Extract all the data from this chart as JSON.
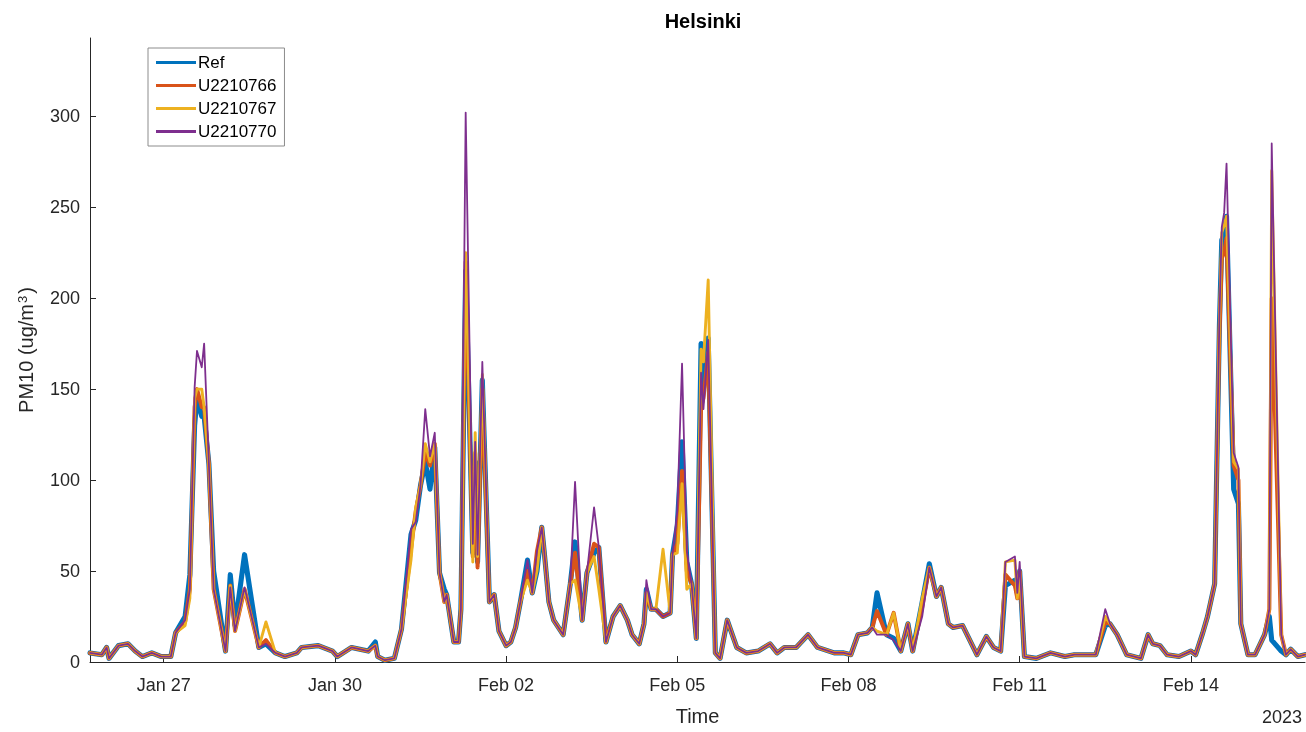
{
  "chart_data": {
    "type": "line",
    "title": "Helsinki",
    "xlabel": "Time",
    "ylabel": "PM10 (ug/m$^{3}$)",
    "annotations": [
      "2023"
    ],
    "x": [
      "2023-01-25T17:00",
      "2023-01-25T22:00",
      "2023-01-26T00:00",
      "2023-01-26T01:00",
      "2023-01-26T05:00",
      "2023-01-26T09:00",
      "2023-01-26T12:00",
      "2023-01-26T15:00",
      "2023-01-26T19:00",
      "2023-01-26T23:00",
      "2023-01-27T03:00",
      "2023-01-27T05:00",
      "2023-01-27T09:00",
      "2023-01-27T11:00",
      "2023-01-27T13:00",
      "2023-01-27T14:00",
      "2023-01-27T16:00",
      "2023-01-27T17:00",
      "2023-01-27T19:00",
      "2023-01-27T21:00",
      "2023-01-28T02:00",
      "2023-01-28T04:00",
      "2023-01-28T06:00",
      "2023-01-28T10:00",
      "2023-01-28T16:00",
      "2023-01-28T19:00",
      "2023-01-28T23:00",
      "2023-01-29T03:00",
      "2023-01-29T08:00",
      "2023-01-29T10:00",
      "2023-01-29T17:00",
      "2023-01-29T23:00",
      "2023-01-30T01:00",
      "2023-01-30T07:00",
      "2023-01-30T14:00",
      "2023-01-30T17:00",
      "2023-01-30T18:00",
      "2023-01-30T21:00",
      "2023-01-31T01:00",
      "2023-01-31T04:00",
      "2023-01-31T08:00",
      "2023-01-31T10:00",
      "2023-01-31T12:00",
      "2023-01-31T14:00",
      "2023-01-31T16:00",
      "2023-01-31T18:00",
      "2023-01-31T20:00",
      "2023-01-31T22:00",
      "2023-01-31T23:00",
      "2023-02-01T02:00",
      "2023-02-01T04:00",
      "2023-02-01T05:00",
      "2023-02-01T07:00",
      "2023-02-01T10:00",
      "2023-02-01T11:00",
      "2023-02-01T12:00",
      "2023-02-01T14:00",
      "2023-02-01T17:00",
      "2023-02-01T19:00",
      "2023-02-01T21:00",
      "2023-02-02T00:00",
      "2023-02-02T02:00",
      "2023-02-02T04:00",
      "2023-02-02T06:00",
      "2023-02-02T09:00",
      "2023-02-02T11:00",
      "2023-02-02T13:00",
      "2023-02-02T15:00",
      "2023-02-02T16:00",
      "2023-02-02T18:00",
      "2023-02-02T20:00",
      "2023-02-03T00:00",
      "2023-02-03T03:00",
      "2023-02-03T05:00",
      "2023-02-03T08:00",
      "2023-02-03T10:00",
      "2023-02-03T13:00",
      "2023-02-03T15:00",
      "2023-02-03T18:00",
      "2023-02-03T21:00",
      "2023-02-04T00:00",
      "2023-02-04T03:00",
      "2023-02-04T05:00",
      "2023-02-04T08:00",
      "2023-02-04T10:00",
      "2023-02-04T11:00",
      "2023-02-04T13:00",
      "2023-02-04T15:00",
      "2023-02-04T18:00",
      "2023-02-04T21:00",
      "2023-02-04T22:00",
      "2023-02-05T00:00",
      "2023-02-05T02:00",
      "2023-02-05T04:00",
      "2023-02-05T06:00",
      "2023-02-05T08:00",
      "2023-02-05T10:00",
      "2023-02-05T11:00",
      "2023-02-05T13:00",
      "2023-02-05T16:00",
      "2023-02-05T18:00",
      "2023-02-05T21:00",
      "2023-02-06T01:00",
      "2023-02-06T05:00",
      "2023-02-06T10:00",
      "2023-02-06T15:00",
      "2023-02-06T18:00",
      "2023-02-06T21:00",
      "2023-02-07T02:00",
      "2023-02-07T07:00",
      "2023-02-07T11:00",
      "2023-02-07T18:00",
      "2023-02-07T22:00",
      "2023-02-08T01:00",
      "2023-02-08T04:00",
      "2023-02-08T08:00",
      "2023-02-08T10:00",
      "2023-02-08T12:00",
      "2023-02-08T16:00",
      "2023-02-08T19:00",
      "2023-02-08T22:00",
      "2023-02-09T01:00",
      "2023-02-09T03:00",
      "2023-02-09T07:00",
      "2023-02-09T10:00",
      "2023-02-09T13:00",
      "2023-02-09T15:00",
      "2023-02-09T18:00",
      "2023-02-09T20:00",
      "2023-02-10T00:00",
      "2023-02-10T06:00",
      "2023-02-10T10:00",
      "2023-02-10T13:00",
      "2023-02-10T16:00",
      "2023-02-10T18:00",
      "2023-02-10T22:00",
      "2023-02-10T23:00",
      "2023-02-11T00:00",
      "2023-02-11T02:00",
      "2023-02-11T07:00",
      "2023-02-11T13:00",
      "2023-02-11T19:00",
      "2023-02-11T23:00",
      "2023-02-12T08:00",
      "2023-02-12T12:00",
      "2023-02-12T14:00",
      "2023-02-12T17:00",
      "2023-02-12T21:00",
      "2023-02-13T03:00",
      "2023-02-13T06:00",
      "2023-02-13T08:00",
      "2023-02-13T11:00",
      "2023-02-13T14:00",
      "2023-02-13T19:00",
      "2023-02-14T00:00",
      "2023-02-14T02:00",
      "2023-02-14T05:00",
      "2023-02-14T07:00",
      "2023-02-14T10:00",
      "2023-02-14T12:00",
      "2023-02-14T13:00",
      "2023-02-14T14:00",
      "2023-02-14T15:00",
      "2023-02-14T18:00",
      "2023-02-14T20:00",
      "2023-02-14T21:00",
      "2023-02-15T00:00",
      "2023-02-15T03:00",
      "2023-02-15T07:00",
      "2023-02-15T09:00",
      "2023-02-15T10:00",
      "2023-02-15T14:00",
      "2023-02-15T16:00",
      "2023-02-15T18:00",
      "2023-02-15T21:00",
      "2023-02-16T00:00"
    ],
    "series": [
      {
        "name": "Ref",
        "color": "#0072bd",
        "values": [
          5,
          4,
          8,
          2,
          9,
          10,
          6,
          3,
          5,
          3,
          3,
          16,
          25,
          48,
          130,
          145,
          135,
          135,
          109,
          50,
          6,
          48,
          20,
          59,
          8,
          10,
          5,
          3,
          5,
          8,
          9,
          6,
          3,
          8,
          6,
          11,
          3,
          1,
          2,
          18,
          70,
          78,
          97,
          110,
          95,
          118,
          49,
          40,
          37,
          11,
          11,
          29,
          215,
          60,
          110,
          55,
          155,
          33,
          37,
          17,
          9,
          11,
          19,
          33,
          56,
          38,
          50,
          74,
          61,
          33,
          23,
          15,
          43,
          66,
          23,
          49,
          60,
          63,
          11,
          25,
          31,
          23,
          15,
          10,
          21,
          40,
          29,
          29,
          25,
          27,
          59,
          75,
          121,
          55,
          43,
          13,
          175,
          150,
          178,
          5,
          2,
          23,
          8,
          5,
          6,
          10,
          5,
          8,
          8,
          15,
          8,
          5,
          5,
          4,
          15,
          16,
          19,
          38,
          15,
          13,
          6,
          21,
          6,
          33,
          54,
          36,
          41,
          21,
          19,
          20,
          4,
          14,
          8,
          6,
          42,
          45,
          38,
          50,
          3,
          2,
          5,
          3,
          4,
          4,
          20,
          21,
          15,
          4,
          2,
          15,
          10,
          9,
          4,
          3,
          6,
          4,
          16,
          25,
          43,
          185,
          232,
          235,
          245,
          95,
          87,
          21,
          4,
          4,
          15,
          25,
          12,
          6,
          4,
          7,
          3,
          4
        ]
      },
      {
        "name": "U2210766",
        "color": "#d95319",
        "values": [
          5,
          4,
          8,
          2,
          9,
          10,
          6,
          3,
          5,
          3,
          3,
          16,
          22,
          40,
          140,
          150,
          140,
          140,
          109,
          40,
          6,
          42,
          17,
          40,
          8,
          12,
          5,
          3,
          5,
          8,
          9,
          6,
          3,
          8,
          6,
          9,
          3,
          1,
          2,
          18,
          62,
          83,
          97,
          115,
          108,
          120,
          49,
          33,
          37,
          11,
          11,
          29,
          220,
          58,
          115,
          52,
          150,
          33,
          37,
          17,
          9,
          11,
          19,
          33,
          50,
          38,
          61,
          74,
          61,
          33,
          23,
          15,
          43,
          60,
          23,
          49,
          65,
          63,
          11,
          25,
          31,
          23,
          15,
          10,
          21,
          38,
          29,
          29,
          25,
          27,
          59,
          65,
          105,
          50,
          43,
          13,
          140,
          145,
          170,
          5,
          2,
          23,
          8,
          5,
          6,
          10,
          5,
          8,
          8,
          15,
          8,
          5,
          5,
          4,
          15,
          16,
          19,
          28,
          15,
          27,
          6,
          21,
          6,
          30,
          52,
          36,
          41,
          21,
          19,
          20,
          4,
          14,
          8,
          6,
          48,
          42,
          35,
          50,
          3,
          2,
          5,
          3,
          4,
          4,
          22,
          21,
          15,
          4,
          2,
          15,
          10,
          9,
          4,
          3,
          6,
          4,
          16,
          25,
          43,
          180,
          222,
          225,
          233,
          108,
          100,
          21,
          4,
          4,
          15,
          29,
          200,
          15,
          4,
          7,
          3,
          4
        ]
      },
      {
        "name": "U2210767",
        "color": "#edb120",
        "values": [
          5,
          4,
          8,
          2,
          9,
          10,
          6,
          3,
          5,
          3,
          3,
          16,
          20,
          35,
          145,
          150,
          150,
          140,
          109,
          40,
          6,
          42,
          17,
          40,
          8,
          22,
          5,
          3,
          5,
          8,
          9,
          6,
          3,
          8,
          6,
          9,
          3,
          1,
          2,
          18,
          56,
          85,
          97,
          120,
          110,
          120,
          49,
          33,
          37,
          11,
          11,
          29,
          225,
          55,
          126,
          58,
          158,
          33,
          37,
          17,
          9,
          11,
          19,
          33,
          45,
          38,
          50,
          74,
          61,
          33,
          23,
          15,
          43,
          45,
          23,
          49,
          58,
          40,
          11,
          25,
          31,
          23,
          15,
          10,
          21,
          38,
          29,
          29,
          62,
          27,
          59,
          60,
          98,
          40,
          43,
          13,
          172,
          165,
          210,
          5,
          2,
          23,
          8,
          5,
          6,
          10,
          5,
          8,
          8,
          15,
          8,
          5,
          5,
          4,
          15,
          16,
          19,
          17,
          15,
          27,
          6,
          21,
          6,
          35,
          52,
          36,
          41,
          21,
          19,
          20,
          4,
          14,
          8,
          6,
          55,
          56,
          35,
          50,
          3,
          2,
          5,
          3,
          4,
          4,
          25,
          21,
          15,
          4,
          2,
          15,
          10,
          9,
          4,
          3,
          6,
          4,
          16,
          25,
          43,
          185,
          236,
          240,
          245,
          110,
          106,
          21,
          4,
          4,
          15,
          29,
          270,
          15,
          4,
          7,
          3,
          4
        ]
      },
      {
        "name": "U2210770",
        "color": "#7e2f8e",
        "values": [
          5,
          4,
          8,
          2,
          9,
          10,
          6,
          3,
          5,
          3,
          3,
          16,
          23,
          40,
          151,
          171,
          162,
          175,
          109,
          40,
          6,
          41,
          17,
          41,
          8,
          10,
          5,
          3,
          5,
          8,
          9,
          6,
          3,
          8,
          6,
          9,
          3,
          1,
          2,
          18,
          73,
          77,
          97,
          139,
          113,
          126,
          49,
          33,
          37,
          11,
          11,
          29,
          302,
          65,
          121,
          59,
          165,
          33,
          37,
          17,
          9,
          11,
          19,
          33,
          56,
          38,
          61,
          74,
          61,
          33,
          23,
          15,
          43,
          99,
          23,
          49,
          85,
          63,
          11,
          25,
          31,
          23,
          15,
          10,
          21,
          45,
          29,
          29,
          25,
          27,
          59,
          83,
          164,
          61,
          43,
          13,
          159,
          139,
          177,
          5,
          2,
          23,
          8,
          5,
          6,
          10,
          5,
          8,
          8,
          15,
          8,
          5,
          5,
          4,
          15,
          16,
          19,
          15,
          15,
          12,
          6,
          21,
          6,
          25,
          52,
          36,
          41,
          21,
          19,
          20,
          4,
          14,
          8,
          6,
          55,
          58,
          38,
          55,
          3,
          2,
          5,
          3,
          4,
          4,
          29,
          21,
          15,
          4,
          2,
          15,
          10,
          9,
          4,
          3,
          6,
          4,
          16,
          25,
          43,
          189,
          239,
          247,
          274,
          115,
          107,
          21,
          4,
          4,
          15,
          29,
          285,
          15,
          4,
          7,
          3,
          4
        ]
      }
    ],
    "xlim": [
      "2023-01-25T17:00",
      "2023-02-16T00:00"
    ],
    "xticks": [
      {
        "value": "2023-01-27",
        "label": "Jan 27"
      },
      {
        "value": "2023-01-30",
        "label": "Jan 30"
      },
      {
        "value": "2023-02-02",
        "label": "Feb 02"
      },
      {
        "value": "2023-02-05",
        "label": "Feb 05"
      },
      {
        "value": "2023-02-08",
        "label": "Feb 08"
      },
      {
        "value": "2023-02-11",
        "label": "Feb 11"
      },
      {
        "value": "2023-02-14",
        "label": "Feb 14"
      }
    ],
    "ylim": [
      0,
      343
    ],
    "yticks": [
      0,
      50,
      100,
      150,
      200,
      250,
      300
    ],
    "grid": false,
    "legend": "top left",
    "marker": "none",
    "line_style": "solid"
  }
}
